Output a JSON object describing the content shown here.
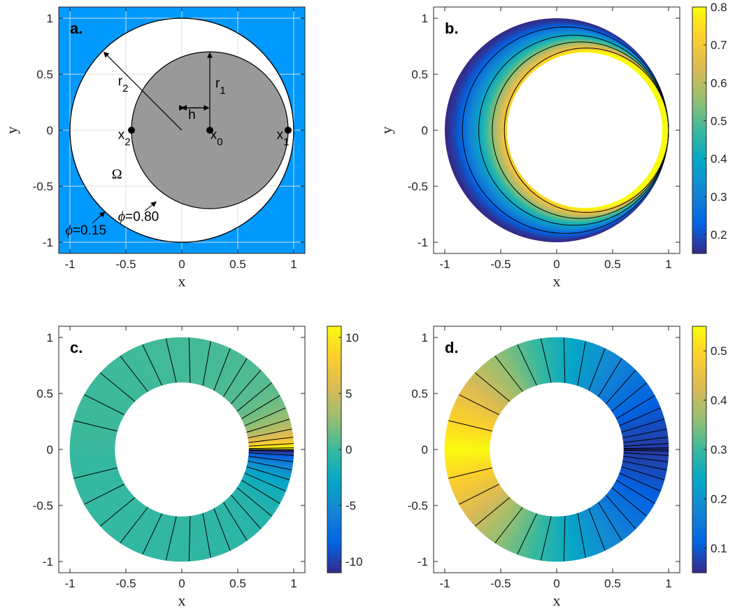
{
  "chart_data": [
    {
      "id": "a",
      "type": "diagram",
      "panel_label": "a.",
      "xlabel": "x",
      "ylabel": "y",
      "xlim": [
        -1.1,
        1.1
      ],
      "ylim": [
        -1.1,
        1.1
      ],
      "xticks": [
        -1,
        -0.5,
        0,
        0.5,
        1
      ],
      "yticks": [
        -1,
        -0.5,
        0,
        0.5,
        1
      ],
      "xtick_labels": [
        "-1",
        "-0.5",
        "0",
        "0.5",
        "1"
      ],
      "ytick_labels": [
        "-1",
        "-0.5",
        "0",
        "0.5",
        "1"
      ],
      "grid": true,
      "outer_circle": {
        "center": [
          0,
          0
        ],
        "radius": 1.0
      },
      "inner_circle": {
        "center": [
          0.25,
          0
        ],
        "radius": 0.7
      },
      "points": [
        {
          "x": 0.25,
          "label": "x",
          "sub": "0"
        },
        {
          "x": 0.95,
          "label": "x",
          "sub": "1"
        },
        {
          "x": -0.45,
          "label": "x",
          "sub": "2"
        }
      ],
      "labels": {
        "r1": "r",
        "r1_sub": "1",
        "r2": "r",
        "r2_sub": "2",
        "h": "h",
        "omega": "Ω",
        "phi_symbol": "ϕ",
        "phi_inner": "=0.80",
        "phi_outer": "=0.15"
      },
      "colors": {
        "background": "#0099ff",
        "inner_disk": "#999999",
        "annulus": "#ffffff"
      }
    },
    {
      "id": "b",
      "type": "heatmap",
      "panel_label": "b.",
      "xlabel": "x",
      "ylabel": "y",
      "xlim": [
        -1.1,
        1.1
      ],
      "ylim": [
        -1.1,
        1.1
      ],
      "xticks": [
        -1,
        -0.5,
        0,
        0.5,
        1
      ],
      "yticks": [
        -1,
        -0.5,
        0,
        0.5,
        1
      ],
      "xtick_labels": [
        "-1",
        "-0.5",
        "0",
        "0.5",
        "1"
      ],
      "ytick_labels": [
        "-1",
        "-0.5",
        "0",
        "0.5",
        "1"
      ],
      "colorbar": {
        "min": 0.15,
        "max": 0.8,
        "ticks": [
          0.2,
          0.3,
          0.4,
          0.5,
          0.6,
          0.7,
          0.8
        ],
        "tick_labels": [
          "0.2",
          "0.3",
          "0.4",
          "0.5",
          "0.6",
          "0.7",
          "0.8"
        ]
      },
      "value_range": [
        0.15,
        0.8
      ],
      "contour_levels": [
        0.25,
        0.4,
        0.55,
        0.7
      ]
    },
    {
      "id": "c",
      "type": "heatmap",
      "panel_label": "c.",
      "xlabel": "x",
      "ylabel": "",
      "xlim": [
        -1.1,
        1.1
      ],
      "ylim": [
        -1.1,
        1.1
      ],
      "xticks": [
        -1,
        -0.5,
        0,
        0.5,
        1
      ],
      "yticks": [
        -1,
        -0.5,
        0,
        0.5,
        1
      ],
      "xtick_labels": [
        "-1",
        "-0.5",
        "0",
        "0.5",
        "1"
      ],
      "ytick_labels": [
        "-1",
        "-0.5",
        "0",
        "0.5",
        "1"
      ],
      "colorbar": {
        "min": -11,
        "max": 11,
        "ticks": [
          -10,
          -5,
          0,
          5,
          10
        ],
        "tick_labels": [
          "-10",
          "-5",
          "0",
          "5",
          "10"
        ]
      },
      "annulus": {
        "inner_radius": 0.6,
        "outer_radius": 1.0
      },
      "value_range": [
        -11,
        11
      ],
      "radial_contours": 40
    },
    {
      "id": "d",
      "type": "heatmap",
      "panel_label": "d.",
      "xlabel": "x",
      "ylabel": "",
      "xlim": [
        -1.1,
        1.1
      ],
      "ylim": [
        -1.1,
        1.1
      ],
      "xticks": [
        -1,
        -0.5,
        0,
        0.5,
        1
      ],
      "yticks": [
        -1,
        -0.5,
        0,
        0.5,
        1
      ],
      "xtick_labels": [
        "-1",
        "-0.5",
        "0",
        "0.5",
        "1"
      ],
      "ytick_labels": [
        "-1",
        "-0.5",
        "0",
        "0.5",
        "1"
      ],
      "colorbar": {
        "min": 0.05,
        "max": 0.55,
        "ticks": [
          0.1,
          0.2,
          0.3,
          0.4,
          0.5
        ],
        "tick_labels": [
          "0.1",
          "0.2",
          "0.3",
          "0.4",
          "0.5"
        ]
      },
      "annulus": {
        "inner_radius": 0.6,
        "outer_radius": 1.0
      },
      "value_range": [
        0.05,
        0.55
      ],
      "radial_contours": 40
    }
  ]
}
